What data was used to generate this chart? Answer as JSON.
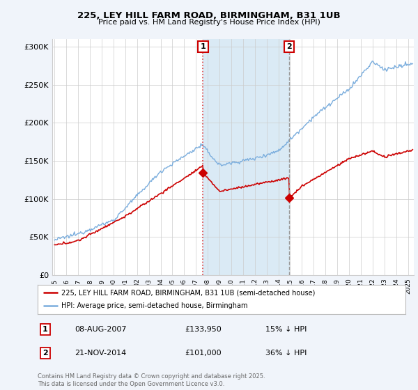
{
  "title": "225, LEY HILL FARM ROAD, BIRMINGHAM, B31 1UB",
  "subtitle": "Price paid vs. HM Land Registry's House Price Index (HPI)",
  "ylabel_ticks": [
    "£0",
    "£50K",
    "£100K",
    "£150K",
    "£200K",
    "£250K",
    "£300K"
  ],
  "ytick_vals": [
    0,
    50000,
    100000,
    150000,
    200000,
    250000,
    300000
  ],
  "ylim": [
    0,
    310000
  ],
  "xlim_start": 1994.8,
  "xlim_end": 2025.5,
  "sale1": {
    "date_num": 2007.6,
    "price": 133950,
    "label": "1",
    "date_str": "08-AUG-2007",
    "pct": "15% ↓ HPI"
  },
  "sale2": {
    "date_num": 2014.9,
    "price": 101000,
    "label": "2",
    "date_str": "21-NOV-2014",
    "pct": "36% ↓ HPI"
  },
  "house_color": "#cc0000",
  "hpi_color": "#7aaddd",
  "shade_color": "#daeaf5",
  "grid_color": "#cccccc",
  "sale1_line_color": "#dd4444",
  "sale2_line_color": "#999999",
  "annotation_box_color": "#cc0000",
  "legend_house": "225, LEY HILL FARM ROAD, BIRMINGHAM, B31 1UB (semi-detached house)",
  "legend_hpi": "HPI: Average price, semi-detached house, Birmingham",
  "footer": "Contains HM Land Registry data © Crown copyright and database right 2025.\nThis data is licensed under the Open Government Licence v3.0.",
  "background_color": "#f0f4fa",
  "plot_bg_color": "#ffffff"
}
